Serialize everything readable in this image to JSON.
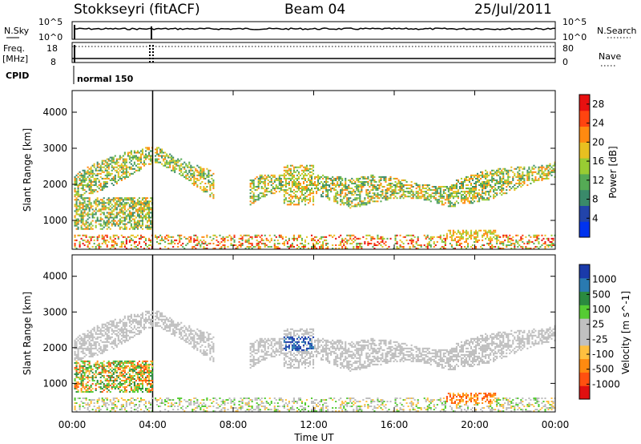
{
  "header": {
    "station": "Stokkseyri (fitACF)",
    "beam": "Beam 04",
    "date": "25/Jul/2011"
  },
  "status_panel": {
    "nsky_label": "N.Sky",
    "nsky_ticks": [
      "10^5",
      "10^0"
    ],
    "nsearch_label": "N.Search",
    "nsearch_ticks": [
      "10^5",
      "10^0"
    ],
    "freq_label_1": "Freq.",
    "freq_label_2": "[MHz]",
    "freq_ticks": [
      "18",
      "8"
    ],
    "nave_label": "Nave",
    "nave_ticks": [
      "80",
      "0"
    ],
    "cpid_label": "CPID",
    "cpid_value": "normal 150"
  },
  "colors": {
    "power_scale": [
      "#0033ee",
      "#2244aa",
      "#3a8a6a",
      "#55aa55",
      "#99cc33",
      "#e8c020",
      "#ff8a10",
      "#ff4410",
      "#e81010"
    ],
    "velocity_scale": [
      "#e01010",
      "#ff5010",
      "#ff8a10",
      "#ffc040",
      "#c0c0c0",
      "#c0c0c0",
      "#55cc33",
      "#2a8a40",
      "#2a7ab0",
      "#1a3aaa"
    ],
    "ground_scatter": "#bdbdbd"
  },
  "chart_data": [
    {
      "type": "heatmap",
      "name_panel": "power",
      "ylabel": "Slant Range [km]",
      "yticks": [
        "1000",
        "2000",
        "3000",
        "4000"
      ],
      "ylim": [
        200,
        4600
      ],
      "xlim": [
        "00:00",
        "24:00"
      ],
      "colorbar_label": "Power [dB]",
      "colorbar_ticks": [
        "4",
        "8",
        "12",
        "16",
        "20",
        "24",
        "28"
      ],
      "colorbar_range": [
        0,
        30
      ]
    },
    {
      "type": "heatmap",
      "name_panel": "velocity",
      "xlabel": "Time UT",
      "xticks": [
        "00:00",
        "04:00",
        "08:00",
        "12:00",
        "16:00",
        "20:00",
        "00:00"
      ],
      "ylabel": "Slant Range [km]",
      "yticks": [
        "1000",
        "2000",
        "3000",
        "4000"
      ],
      "ylim": [
        200,
        4600
      ],
      "colorbar_label": "Velocity [m s^-1]",
      "colorbar_ticks": [
        "1000",
        "500",
        "100",
        "25",
        "-25",
        "-100",
        "-500",
        "-1000"
      ]
    }
  ]
}
